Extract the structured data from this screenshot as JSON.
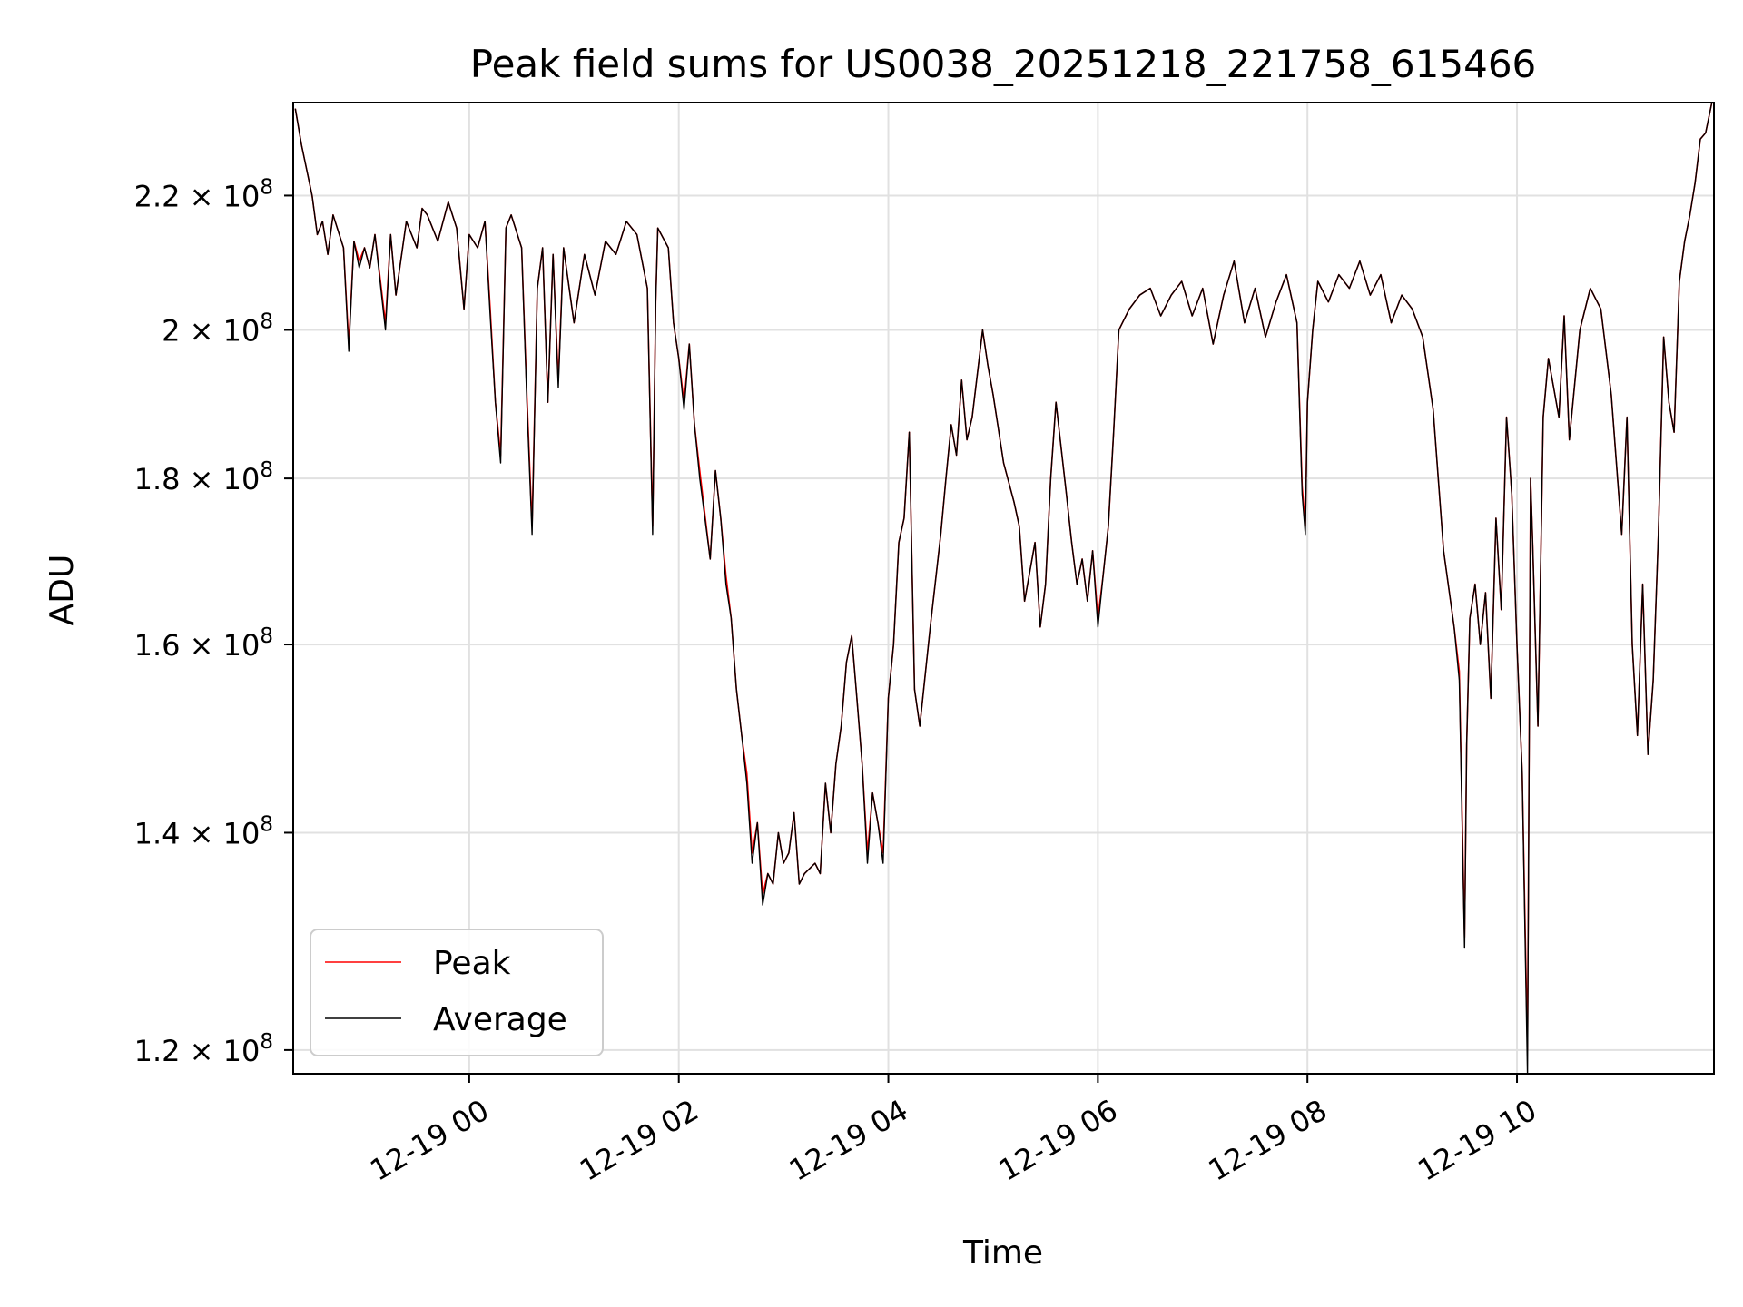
{
  "chart_data": {
    "type": "line",
    "title": "Peak field sums for US0038_20251218_221758_615466",
    "xlabel": "Time",
    "ylabel": "ADU",
    "y_scale": "log",
    "ylim": [
      118000000,
      235000000
    ],
    "xlim_hours": [
      -1.68,
      11.88
    ],
    "grid": true,
    "legend_position": "lower-left",
    "x_ticks": [
      {
        "hour": 0,
        "label": "12-19 00"
      },
      {
        "hour": 2,
        "label": "12-19 02"
      },
      {
        "hour": 4,
        "label": "12-19 04"
      },
      {
        "hour": 6,
        "label": "12-19 06"
      },
      {
        "hour": 8,
        "label": "12-19 08"
      },
      {
        "hour": 10,
        "label": "12-19 10"
      }
    ],
    "y_ticks": [
      {
        "value": 120000000,
        "mantissa": "1.2",
        "base": "10",
        "exp": "8"
      },
      {
        "value": 140000000,
        "mantissa": "1.4",
        "base": "10",
        "exp": "8"
      },
      {
        "value": 160000000,
        "mantissa": "1.6",
        "base": "10",
        "exp": "8"
      },
      {
        "value": 180000000,
        "mantissa": "1.8",
        "base": "10",
        "exp": "8"
      },
      {
        "value": 200000000,
        "mantissa": "2",
        "base": "10",
        "exp": "8"
      },
      {
        "value": 220000000,
        "mantissa": "2.2",
        "base": "10",
        "exp": "8"
      }
    ],
    "series": [
      {
        "name": "Peak",
        "color": "#ff0000",
        "x_hours": [
          -1.66,
          -1.6,
          -1.5,
          -1.45,
          -1.4,
          -1.35,
          -1.3,
          -1.2,
          -1.15,
          -1.1,
          -1.05,
          -1.0,
          -0.95,
          -0.9,
          -0.8,
          -0.75,
          -0.7,
          -0.6,
          -0.5,
          -0.45,
          -0.4,
          -0.3,
          -0.2,
          -0.12,
          -0.05,
          0.0,
          0.08,
          0.15,
          0.2,
          0.25,
          0.3,
          0.35,
          0.4,
          0.5,
          0.55,
          0.6,
          0.65,
          0.7,
          0.75,
          0.8,
          0.85,
          0.9,
          1.0,
          1.1,
          1.2,
          1.3,
          1.4,
          1.5,
          1.6,
          1.7,
          1.75,
          1.78,
          1.8,
          1.9,
          1.95,
          2.0,
          2.05,
          2.1,
          2.15,
          2.2,
          2.3,
          2.35,
          2.4,
          2.45,
          2.5,
          2.55,
          2.6,
          2.65,
          2.7,
          2.75,
          2.8,
          2.85,
          2.9,
          2.95,
          3.0,
          3.05,
          3.1,
          3.15,
          3.2,
          3.3,
          3.35,
          3.4,
          3.45,
          3.5,
          3.55,
          3.6,
          3.65,
          3.7,
          3.75,
          3.8,
          3.85,
          3.9,
          3.95,
          4.0,
          4.05,
          4.1,
          4.15,
          4.2,
          4.25,
          4.3,
          4.4,
          4.5,
          4.55,
          4.6,
          4.65,
          4.7,
          4.75,
          4.8,
          4.9,
          4.95,
          5.0,
          5.1,
          5.2,
          5.25,
          5.3,
          5.4,
          5.45,
          5.5,
          5.55,
          5.6,
          5.7,
          5.75,
          5.8,
          5.85,
          5.9,
          5.95,
          6.0,
          6.05,
          6.1,
          6.15,
          6.2,
          6.3,
          6.4,
          6.5,
          6.6,
          6.7,
          6.8,
          6.9,
          7.0,
          7.1,
          7.2,
          7.3,
          7.4,
          7.5,
          7.6,
          7.7,
          7.8,
          7.9,
          7.95,
          7.98,
          8.0,
          8.05,
          8.1,
          8.2,
          8.3,
          8.4,
          8.5,
          8.6,
          8.7,
          8.8,
          8.9,
          9.0,
          9.1,
          9.2,
          9.3,
          9.4,
          9.45,
          9.5,
          9.52,
          9.55,
          9.6,
          9.65,
          9.7,
          9.75,
          9.8,
          9.85,
          9.9,
          9.95,
          10.0,
          10.05,
          10.1,
          10.13,
          10.15,
          10.2,
          10.25,
          10.3,
          10.35,
          10.4,
          10.45,
          10.5,
          10.6,
          10.7,
          10.8,
          10.9,
          11.0,
          11.05,
          11.1,
          11.15,
          11.2,
          11.25,
          11.3,
          11.35,
          11.4,
          11.45,
          11.5,
          11.55,
          11.6,
          11.65,
          11.7,
          11.75,
          11.8,
          11.86
        ],
        "values": [
          234000000,
          228000000,
          220000000,
          214000000,
          216000000,
          211000000,
          217000000,
          212000000,
          198000000,
          213000000,
          210000000,
          212000000,
          209000000,
          214000000,
          201000000,
          214000000,
          205000000,
          216000000,
          212000000,
          218000000,
          217000000,
          213000000,
          219000000,
          215000000,
          203000000,
          214000000,
          212000000,
          216000000,
          203000000,
          190000000,
          183000000,
          215000000,
          217000000,
          212000000,
          191000000,
          174000000,
          206000000,
          212000000,
          190000000,
          211000000,
          193000000,
          212000000,
          201000000,
          211000000,
          205000000,
          213000000,
          211000000,
          216000000,
          214000000,
          206000000,
          174000000,
          204000000,
          215000000,
          212000000,
          201000000,
          196000000,
          190000000,
          198000000,
          187000000,
          181000000,
          170000000,
          181000000,
          175000000,
          168000000,
          163000000,
          155000000,
          150000000,
          146000000,
          138000000,
          141000000,
          134000000,
          136000000,
          135000000,
          140000000,
          137000000,
          138000000,
          142000000,
          135000000,
          136000000,
          137000000,
          136000000,
          145000000,
          140000000,
          147000000,
          151000000,
          158000000,
          161000000,
          154000000,
          147000000,
          138000000,
          144000000,
          141000000,
          138000000,
          154000000,
          160000000,
          172000000,
          175000000,
          186000000,
          155000000,
          151000000,
          162000000,
          173000000,
          180000000,
          187000000,
          183000000,
          193000000,
          185000000,
          188000000,
          200000000,
          195000000,
          191000000,
          182000000,
          177000000,
          174000000,
          165000000,
          172000000,
          162000000,
          167000000,
          180000000,
          190000000,
          178000000,
          172000000,
          167000000,
          170000000,
          165000000,
          171000000,
          163000000,
          168000000,
          174000000,
          186000000,
          200000000,
          203000000,
          205000000,
          206000000,
          202000000,
          205000000,
          207000000,
          202000000,
          206000000,
          198000000,
          205000000,
          210000000,
          201000000,
          206000000,
          199000000,
          204000000,
          208000000,
          201000000,
          179000000,
          174000000,
          190000000,
          200000000,
          207000000,
          204000000,
          208000000,
          206000000,
          210000000,
          205000000,
          208000000,
          201000000,
          205000000,
          203000000,
          199000000,
          189000000,
          171000000,
          162000000,
          157000000,
          130000000,
          149000000,
          163000000,
          167000000,
          160000000,
          166000000,
          154000000,
          175000000,
          164000000,
          188000000,
          178000000,
          160000000,
          146000000,
          120000000,
          180000000,
          172000000,
          151000000,
          188000000,
          196000000,
          192000000,
          188000000,
          202000000,
          185000000,
          200000000,
          206000000,
          203000000,
          191000000,
          173000000,
          188000000,
          160000000,
          150000000,
          167000000,
          148000000,
          156000000,
          173000000,
          199000000,
          190000000,
          186000000,
          207000000,
          213000000,
          217000000,
          222000000,
          229000000,
          230000000,
          235000000
        ]
      },
      {
        "name": "Average",
        "color": "#000000",
        "x_hours": [
          -1.66,
          -1.6,
          -1.5,
          -1.45,
          -1.4,
          -1.35,
          -1.3,
          -1.2,
          -1.15,
          -1.1,
          -1.05,
          -1.0,
          -0.95,
          -0.9,
          -0.8,
          -0.75,
          -0.7,
          -0.6,
          -0.5,
          -0.45,
          -0.4,
          -0.3,
          -0.2,
          -0.12,
          -0.05,
          0.0,
          0.08,
          0.15,
          0.2,
          0.25,
          0.3,
          0.35,
          0.4,
          0.5,
          0.55,
          0.6,
          0.65,
          0.7,
          0.75,
          0.8,
          0.85,
          0.9,
          1.0,
          1.1,
          1.2,
          1.3,
          1.4,
          1.5,
          1.6,
          1.7,
          1.75,
          1.78,
          1.8,
          1.9,
          1.95,
          2.0,
          2.05,
          2.1,
          2.15,
          2.2,
          2.3,
          2.35,
          2.4,
          2.45,
          2.5,
          2.55,
          2.6,
          2.65,
          2.7,
          2.75,
          2.8,
          2.85,
          2.9,
          2.95,
          3.0,
          3.05,
          3.1,
          3.15,
          3.2,
          3.3,
          3.35,
          3.4,
          3.45,
          3.5,
          3.55,
          3.6,
          3.65,
          3.7,
          3.75,
          3.8,
          3.85,
          3.9,
          3.95,
          4.0,
          4.05,
          4.1,
          4.15,
          4.2,
          4.25,
          4.3,
          4.4,
          4.5,
          4.55,
          4.6,
          4.65,
          4.7,
          4.75,
          4.8,
          4.9,
          4.95,
          5.0,
          5.1,
          5.2,
          5.25,
          5.3,
          5.4,
          5.45,
          5.5,
          5.55,
          5.6,
          5.7,
          5.75,
          5.8,
          5.85,
          5.9,
          5.95,
          6.0,
          6.05,
          6.1,
          6.15,
          6.2,
          6.3,
          6.4,
          6.5,
          6.6,
          6.7,
          6.8,
          6.9,
          7.0,
          7.1,
          7.2,
          7.3,
          7.4,
          7.5,
          7.6,
          7.7,
          7.8,
          7.9,
          7.95,
          7.98,
          8.0,
          8.05,
          8.1,
          8.2,
          8.3,
          8.4,
          8.5,
          8.6,
          8.7,
          8.8,
          8.9,
          9.0,
          9.1,
          9.2,
          9.3,
          9.4,
          9.45,
          9.5,
          9.52,
          9.55,
          9.6,
          9.65,
          9.7,
          9.75,
          9.8,
          9.85,
          9.9,
          9.95,
          10.0,
          10.05,
          10.1,
          10.13,
          10.15,
          10.2,
          10.25,
          10.3,
          10.35,
          10.4,
          10.45,
          10.5,
          10.6,
          10.7,
          10.8,
          10.9,
          11.0,
          11.05,
          11.1,
          11.15,
          11.2,
          11.25,
          11.3,
          11.35,
          11.4,
          11.45,
          11.5,
          11.55,
          11.6,
          11.65,
          11.7,
          11.75,
          11.8,
          11.86
        ],
        "values": [
          234000000,
          228000000,
          220000000,
          214000000,
          216000000,
          211000000,
          217000000,
          212000000,
          197000000,
          213000000,
          209000000,
          212000000,
          209000000,
          214000000,
          200000000,
          214000000,
          205000000,
          216000000,
          212000000,
          218000000,
          217000000,
          213000000,
          219000000,
          215000000,
          203000000,
          214000000,
          212000000,
          216000000,
          202000000,
          190000000,
          182000000,
          215000000,
          217000000,
          212000000,
          190000000,
          173000000,
          206000000,
          212000000,
          190000000,
          211000000,
          192000000,
          212000000,
          201000000,
          211000000,
          205000000,
          213000000,
          211000000,
          216000000,
          214000000,
          206000000,
          173000000,
          204000000,
          215000000,
          212000000,
          201000000,
          196000000,
          189000000,
          198000000,
          187000000,
          180000000,
          170000000,
          181000000,
          175000000,
          167000000,
          163000000,
          155000000,
          150000000,
          145000000,
          137000000,
          141000000,
          133000000,
          136000000,
          135000000,
          140000000,
          137000000,
          138000000,
          142000000,
          135000000,
          136000000,
          137000000,
          136000000,
          145000000,
          140000000,
          147000000,
          151000000,
          158000000,
          161000000,
          154000000,
          147000000,
          137000000,
          144000000,
          141000000,
          137000000,
          154000000,
          160000000,
          172000000,
          175000000,
          186000000,
          155000000,
          151000000,
          162000000,
          173000000,
          180000000,
          187000000,
          183000000,
          193000000,
          185000000,
          188000000,
          200000000,
          195000000,
          191000000,
          182000000,
          177000000,
          174000000,
          165000000,
          172000000,
          162000000,
          167000000,
          180000000,
          190000000,
          178000000,
          172000000,
          167000000,
          170000000,
          165000000,
          171000000,
          162000000,
          168000000,
          174000000,
          186000000,
          200000000,
          203000000,
          205000000,
          206000000,
          202000000,
          205000000,
          207000000,
          202000000,
          206000000,
          198000000,
          205000000,
          210000000,
          201000000,
          206000000,
          199000000,
          204000000,
          208000000,
          201000000,
          178000000,
          173000000,
          190000000,
          200000000,
          207000000,
          204000000,
          208000000,
          206000000,
          210000000,
          205000000,
          208000000,
          201000000,
          205000000,
          203000000,
          199000000,
          189000000,
          171000000,
          162000000,
          156000000,
          129000000,
          149000000,
          163000000,
          167000000,
          160000000,
          166000000,
          154000000,
          175000000,
          164000000,
          188000000,
          178000000,
          160000000,
          146000000,
          118000000,
          180000000,
          172000000,
          151000000,
          188000000,
          196000000,
          192000000,
          188000000,
          202000000,
          185000000,
          200000000,
          206000000,
          203000000,
          191000000,
          173000000,
          188000000,
          160000000,
          150000000,
          167000000,
          148000000,
          156000000,
          173000000,
          199000000,
          190000000,
          186000000,
          207000000,
          213000000,
          217000000,
          222000000,
          229000000,
          230000000,
          235000000
        ]
      }
    ]
  }
}
